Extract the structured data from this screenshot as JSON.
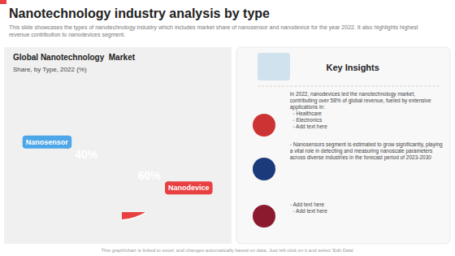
{
  "chart_data": {
    "type": "pie",
    "title": "Nanotechnology industry analysis by type",
    "subtitle": "This slide showcases the types of nanotechnology industry which includes market share of nanosensor and nanodevice for the year 2022. It also highlights highest revenue contribution to nanodevices segment.",
    "categories": [
      "Nanodevice",
      "Nanosensor"
    ],
    "values": [
      60,
      40
    ],
    "value_labels": [
      "60%",
      "40%"
    ],
    "colors": [
      "#E84040",
      "#4DA6E8"
    ],
    "data_labels": true,
    "annotations": {
      "chart_title": "Global Nanotechnology  Market",
      "chart_subtitle": "Share, by Type, 2022 (%)",
      "key_insights_title": "Key Insights",
      "insights": [
        "In 2022, nanodevices led the nanotechnology market, contributing over 58% of global revenue, fueled by extensive applications in:\n  ◦  Healthcare\n  ◦  Electronics\n  ◦  Add text here",
        "◦  Nanosensors segment is estimated to grow significantly, playing a vital role in detecting and measuring nanoscale parameters across diverse industries in the forecast period of 2023-2030",
        "◦  Add text here\n  ◦  Add text here"
      ],
      "footer": "This graph/chart is linked to excel, and changes automatically based on data. Just left click on it and select 'Edit Data'"
    }
  }
}
